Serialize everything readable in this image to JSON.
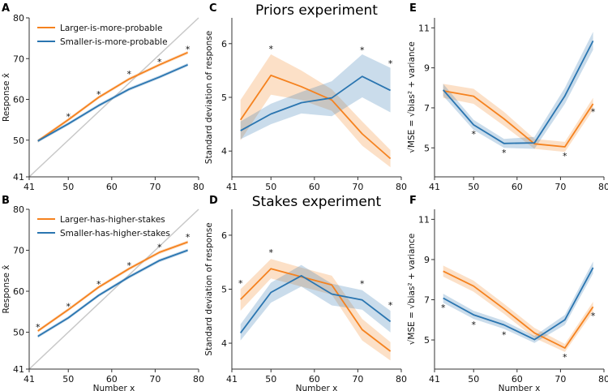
{
  "colors": {
    "orange": "#f5821f",
    "blue": "#2a75b0",
    "identity": "#c8c8c8",
    "axis": "#333333"
  },
  "chart_data": [
    {
      "panel": "A",
      "type": "line",
      "title": "",
      "xlabel": "",
      "ylabel": "Response x̂",
      "xlim": [
        41,
        80
      ],
      "ylim": [
        41,
        80
      ],
      "xticks": [
        41,
        50,
        60,
        70,
        80
      ],
      "yticks": [
        41,
        50,
        60,
        70,
        80
      ],
      "identity_line": true,
      "legend": "top-left",
      "x": [
        43,
        50,
        57,
        64,
        71,
        77.5
      ],
      "series": [
        {
          "name": "Larger-is-more-probable",
          "color": "orange",
          "values": [
            49.8,
            55.0,
            60.5,
            65.0,
            68.5,
            71.5
          ],
          "band": 0.4
        },
        {
          "name": "Smaller-is-more-probable",
          "color": "blue",
          "values": [
            49.8,
            54.0,
            58.5,
            62.5,
            65.5,
            68.5
          ],
          "band": 0.4
        }
      ],
      "significance_x": [
        50,
        57,
        64,
        71,
        77.5
      ],
      "significance_y": [
        56,
        61.5,
        66.5,
        69.5,
        72.5
      ]
    },
    {
      "panel": "B",
      "type": "line",
      "title": "",
      "xlabel": "Number x",
      "ylabel": "Response x̂",
      "xlim": [
        41,
        80
      ],
      "ylim": [
        41,
        80
      ],
      "xticks": [
        41,
        50,
        60,
        70,
        80
      ],
      "yticks": [
        41,
        50,
        60,
        70,
        80
      ],
      "identity_line": true,
      "legend": "top-left",
      "x": [
        43,
        50,
        57,
        64,
        71,
        77.5
      ],
      "series": [
        {
          "name": "Larger-has-higher-stakes",
          "color": "orange",
          "values": [
            50.3,
            55.5,
            61.0,
            65.5,
            69.5,
            72.0
          ],
          "band": 0.4
        },
        {
          "name": "Smaller-has-higher-stakes",
          "color": "blue",
          "values": [
            49.0,
            53.5,
            59.0,
            63.5,
            67.5,
            70.0
          ],
          "band": 0.4
        }
      ],
      "significance_x": [
        43,
        50,
        57,
        64,
        71,
        77.5
      ],
      "significance_y": [
        51.5,
        56.5,
        62,
        66.5,
        71,
        73.5
      ]
    },
    {
      "panel": "C",
      "type": "line",
      "title": "Priors experiment",
      "xlabel": "",
      "ylabel": "Standard deviation of response",
      "xlim": [
        41,
        80
      ],
      "ylim": [
        3.52,
        6.48
      ],
      "xticks": [
        41,
        50,
        60,
        70,
        80
      ],
      "yticks": [
        4,
        5,
        6
      ],
      "x": [
        43,
        50,
        57,
        64,
        71,
        77.5
      ],
      "series": [
        {
          "name": "Larger-is-more-probable",
          "color": "orange",
          "values": [
            4.58,
            5.41,
            5.2,
            4.95,
            4.32,
            3.86
          ],
          "band_lo": [
            4.2,
            5.05,
            4.95,
            4.75,
            4.1,
            3.7
          ],
          "band_hi": [
            4.95,
            5.8,
            5.5,
            5.15,
            4.55,
            4.02
          ]
        },
        {
          "name": "Smaller-is-more-probable",
          "color": "blue",
          "values": [
            4.38,
            4.69,
            4.9,
            4.99,
            5.39,
            5.13
          ],
          "band_lo": [
            4.22,
            4.5,
            4.7,
            4.65,
            5.0,
            4.72
          ],
          "band_hi": [
            4.55,
            4.88,
            5.1,
            5.3,
            5.8,
            5.55
          ]
        }
      ],
      "significance_x": [
        50,
        71,
        77.5
      ],
      "significance_y": [
        5.92,
        5.9,
        5.65
      ]
    },
    {
      "panel": "D",
      "type": "line",
      "title": "Stakes experiment",
      "xlabel": "Number x",
      "ylabel": "Standard deviation of response",
      "xlim": [
        41,
        80
      ],
      "ylim": [
        3.52,
        6.48
      ],
      "xticks": [
        41,
        50,
        60,
        70,
        80
      ],
      "yticks": [
        4,
        5,
        6
      ],
      "x": [
        43,
        50,
        57,
        64,
        71,
        77.5
      ],
      "series": [
        {
          "name": "Larger-has-higher-stakes",
          "color": "orange",
          "values": [
            4.81,
            5.38,
            5.23,
            5.08,
            4.25,
            3.85
          ],
          "band_lo": [
            4.6,
            5.2,
            5.05,
            4.9,
            4.05,
            3.68
          ],
          "band_hi": [
            5.0,
            5.56,
            5.4,
            5.25,
            4.45,
            4.02
          ]
        },
        {
          "name": "Smaller-has-higher-stakes",
          "color": "blue",
          "values": [
            4.19,
            4.94,
            5.25,
            4.91,
            4.8,
            4.4
          ],
          "band_lo": [
            4.05,
            4.75,
            5.05,
            4.7,
            4.62,
            4.2
          ],
          "band_hi": [
            4.35,
            5.12,
            5.45,
            5.1,
            4.98,
            4.6
          ]
        }
      ],
      "significance_x": [
        43,
        50,
        71,
        77.5
      ],
      "significance_y": [
        5.13,
        5.7,
        5.12,
        4.72
      ]
    },
    {
      "panel": "E",
      "type": "line",
      "title": "",
      "xlabel": "",
      "ylabel": "√MSE = √bias² + variance",
      "xlim": [
        41,
        80
      ],
      "ylim": [
        3.55,
        11.5
      ],
      "xticks": [
        41,
        50,
        60,
        70,
        80
      ],
      "yticks": [
        5,
        7,
        9,
        11
      ],
      "x": [
        43,
        50,
        57,
        64,
        71,
        77.5
      ],
      "series": [
        {
          "name": "Larger-is-more-probable",
          "color": "orange",
          "values": [
            7.85,
            7.58,
            6.45,
            5.2,
            5.05,
            7.2
          ],
          "band_lo": [
            7.5,
            7.2,
            6.1,
            4.95,
            4.8,
            6.9
          ],
          "band_hi": [
            8.2,
            7.95,
            6.8,
            5.45,
            5.3,
            7.5
          ]
        },
        {
          "name": "Smaller-is-more-probable",
          "color": "blue",
          "values": [
            7.9,
            6.15,
            5.22,
            5.25,
            7.6,
            10.35
          ],
          "band_lo": [
            7.6,
            5.9,
            5.0,
            4.95,
            7.2,
            9.9
          ],
          "band_hi": [
            8.2,
            6.4,
            5.45,
            5.55,
            8.0,
            10.8
          ]
        }
      ],
      "significance_x": [
        50,
        57,
        71,
        77.5
      ],
      "significance_y": [
        5.75,
        4.8,
        4.65,
        6.85
      ]
    },
    {
      "panel": "F",
      "type": "line",
      "title": "",
      "xlabel": "Number x",
      "ylabel": "√MSE = √bias² + variance",
      "xlim": [
        41,
        80
      ],
      "ylim": [
        3.55,
        11.5
      ],
      "xticks": [
        41,
        50,
        60,
        70,
        80
      ],
      "yticks": [
        5,
        7,
        9,
        11
      ],
      "x": [
        43,
        50,
        57,
        64,
        71,
        77.5
      ],
      "series": [
        {
          "name": "Larger-has-higher-stakes",
          "color": "orange",
          "values": [
            8.42,
            7.68,
            6.55,
            5.35,
            4.6,
            6.65
          ],
          "band_lo": [
            8.15,
            7.4,
            6.3,
            5.1,
            4.4,
            6.4
          ],
          "band_hi": [
            8.7,
            7.95,
            6.8,
            5.6,
            4.8,
            6.9
          ]
        },
        {
          "name": "Smaller-has-higher-stakes",
          "color": "blue",
          "values": [
            7.08,
            6.25,
            5.75,
            5.02,
            6.0,
            8.6
          ],
          "band_lo": [
            6.85,
            6.05,
            5.55,
            4.85,
            5.75,
            8.3
          ],
          "band_hi": [
            7.3,
            6.45,
            5.95,
            5.2,
            6.25,
            8.9
          ]
        }
      ],
      "significance_x": [
        43,
        50,
        57,
        71,
        77.5
      ],
      "significance_y": [
        6.65,
        5.8,
        5.3,
        4.2,
        6.25
      ]
    }
  ]
}
